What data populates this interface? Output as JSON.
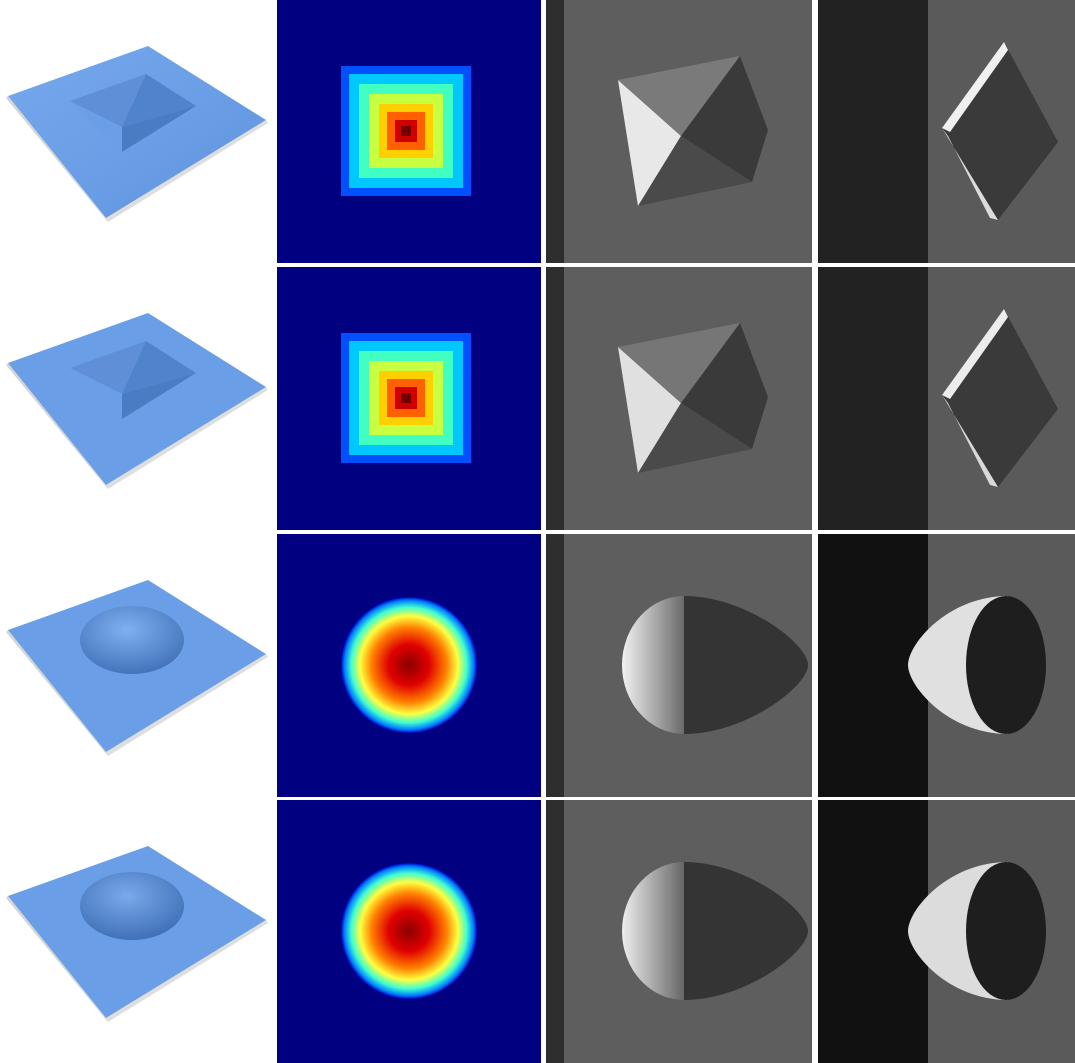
{
  "figure": {
    "rows": [
      {
        "shape": "pyramid",
        "surface": "smooth"
      },
      {
        "shape": "pyramid",
        "surface": "rough"
      },
      {
        "shape": "dome",
        "surface": "smooth"
      },
      {
        "shape": "dome",
        "surface": "rough"
      }
    ],
    "columns": [
      "3d-surface-render",
      "height-map-jet",
      "simulated-image-left-shadow",
      "simulated-image-dark-band"
    ],
    "colors": {
      "surface_blue": "#6a9ee6",
      "surface_blue_dark": "#4f83cc",
      "jet_background": "#000080",
      "jet_red": "#c00000",
      "sem_background": "#5a5a5a",
      "sem_dark_band": "#1a1a1a"
    }
  }
}
